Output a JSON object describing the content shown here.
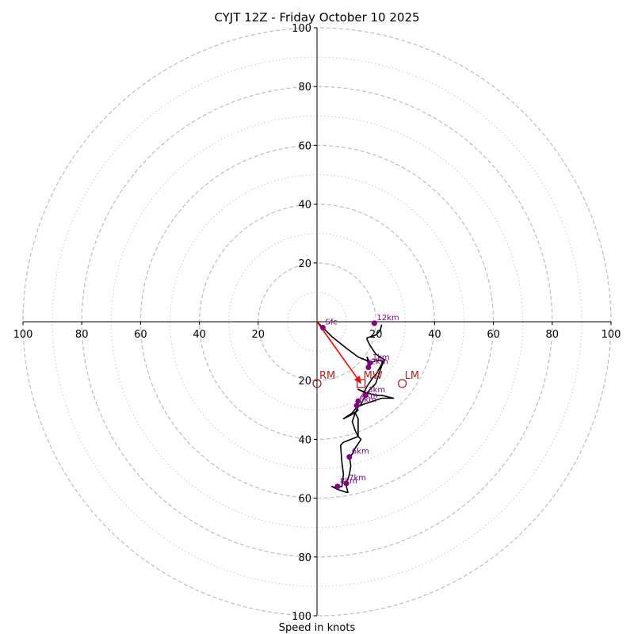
{
  "chart_data": {
    "type": "hodograph",
    "title": "CYJT 12Z - Friday October 10 2025",
    "xlabel": "Speed in knots",
    "max_speed": 100,
    "axis_ticks": [
      20,
      40,
      60,
      80,
      100
    ],
    "x_tick_labels": [
      "100",
      "80",
      "60",
      "40",
      "20",
      "20",
      "40",
      "60",
      "80",
      "100"
    ],
    "y_tick_labels_top": [
      "20",
      "40",
      "60",
      "80",
      "100"
    ],
    "y_tick_labels_bottom": [
      "20",
      "40",
      "60",
      "80",
      "100"
    ],
    "rings_major": [
      20,
      40,
      60,
      80,
      100
    ],
    "rings_minor": [
      10,
      30,
      50,
      70,
      90
    ],
    "hodograph_trace": [
      [
        0,
        0
      ],
      [
        2,
        -2
      ],
      [
        5,
        -5
      ],
      [
        10,
        -9
      ],
      [
        14,
        -12
      ],
      [
        16.5,
        -13
      ],
      [
        18,
        -14
      ],
      [
        17.5,
        -15.5
      ],
      [
        17,
        -16
      ],
      [
        17.5,
        -14
      ],
      [
        17,
        -12
      ],
      [
        18,
        -14
      ],
      [
        21,
        -13
      ],
      [
        22.5,
        -13.5
      ],
      [
        20,
        -18
      ],
      [
        19,
        -19
      ],
      [
        17,
        -22
      ],
      [
        16,
        -24
      ],
      [
        14,
        -23
      ],
      [
        16.5,
        -24
      ],
      [
        20,
        -25
      ],
      [
        22,
        -25
      ],
      [
        26,
        -26
      ],
      [
        22,
        -26
      ],
      [
        19,
        -27
      ],
      [
        16,
        -28
      ],
      [
        13.5,
        -29
      ],
      [
        12,
        -31
      ],
      [
        9,
        -33
      ],
      [
        12,
        -31.5
      ],
      [
        14,
        -30
      ],
      [
        13,
        -31
      ],
      [
        14,
        -33
      ],
      [
        14,
        -35
      ],
      [
        14,
        -39
      ],
      [
        9,
        -41
      ],
      [
        8,
        -42
      ],
      [
        8.5,
        -48
      ],
      [
        9,
        -52
      ],
      [
        8.5,
        -56
      ],
      [
        6.5,
        -56.5
      ],
      [
        5,
        -56
      ],
      [
        7,
        -57
      ],
      [
        10,
        -58
      ],
      [
        10.5,
        -58
      ],
      [
        10,
        -56
      ],
      [
        10,
        -55
      ],
      [
        11,
        -52
      ],
      [
        11.5,
        -49
      ],
      [
        11,
        -46
      ],
      [
        12,
        -45
      ],
      [
        13,
        -43
      ],
      [
        15,
        -40
      ],
      [
        14,
        -39
      ],
      [
        13,
        -37
      ],
      [
        12,
        -34
      ],
      [
        13,
        -31
      ],
      [
        14,
        -29
      ],
      [
        15,
        -28
      ],
      [
        16.5,
        -25
      ],
      [
        18,
        -23
      ],
      [
        20,
        -21
      ],
      [
        21,
        -18
      ],
      [
        22,
        -15
      ],
      [
        23,
        -13
      ],
      [
        20,
        -11
      ],
      [
        18,
        -8
      ],
      [
        17,
        -6
      ],
      [
        17,
        -5.5
      ],
      [
        20,
        -4.5
      ],
      [
        21.5,
        -3
      ],
      [
        22,
        -1
      ]
    ],
    "height_markers": [
      {
        "label": "Sfc",
        "u": 2,
        "v": -2
      },
      {
        "label": "1km",
        "u": 18,
        "v": -14
      },
      {
        "label": "2km",
        "u": 17.5,
        "v": -15.5
      },
      {
        "label": "3km",
        "u": 16.5,
        "v": -25
      },
      {
        "label": "4km",
        "u": 14,
        "v": -27
      },
      {
        "label": "5km",
        "u": 13.5,
        "v": -28.5
      },
      {
        "label": "6km",
        "u": 11,
        "v": -46
      },
      {
        "label": "7km",
        "u": 10,
        "v": -55
      },
      {
        "label": "8km",
        "u": 7,
        "v": -56
      },
      {
        "label": "12km",
        "u": 19.5,
        "v": -0.5
      }
    ],
    "storm_motion": [
      {
        "label": "RM",
        "u": 0,
        "v": -21
      },
      {
        "label": "MW",
        "u": 15,
        "v": -21
      },
      {
        "label": "LM",
        "u": 29,
        "v": -21
      }
    ],
    "mean_wind_vector": {
      "from": [
        0,
        0
      ],
      "to": [
        15,
        -21
      ]
    },
    "colors": {
      "trace": "#000000",
      "markers": "#800080",
      "storm_motion": "#b22222",
      "vector": "#ff0000",
      "ring": "#bdbdbd",
      "axis": "#000000"
    }
  }
}
